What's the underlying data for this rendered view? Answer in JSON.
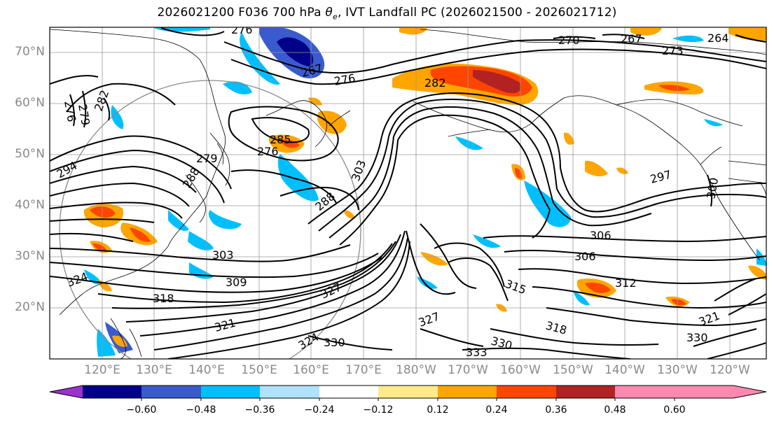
{
  "title": {
    "prefix": "2026021200 F036 700 hPa ",
    "theta": "θ",
    "sub": "e",
    "suffix": ", IVT Landfall PC (2026021500 - 2026021712)"
  },
  "map": {
    "projection": "PlateCarree",
    "extent": {
      "lon_min": 110,
      "lon_max": 247,
      "lat_min": 10,
      "lat_max": 75
    },
    "lat_labels": [
      "70°N",
      "60°N",
      "50°N",
      "40°N",
      "30°N",
      "20°N"
    ],
    "lon_labels": [
      "120°E",
      "130°E",
      "140°E",
      "150°E",
      "160°E",
      "170°E",
      "180°W",
      "170°W",
      "160°W",
      "150°W",
      "140°W",
      "130°W",
      "120°W"
    ],
    "contour_field": "700 hPa theta-e (K)",
    "contour_labels": [
      "276",
      "279",
      "282",
      "267",
      "276",
      "270",
      "267",
      "273",
      "264",
      "282",
      "276",
      "285",
      "279",
      "276",
      "288",
      "288",
      "294",
      "303",
      "309",
      "318",
      "321",
      "324",
      "327",
      "327",
      "303",
      "315",
      "306",
      "306",
      "312",
      "318",
      "321",
      "330",
      "333",
      "330",
      "330",
      "324",
      "300",
      "297"
    ],
    "shading_field": "IVT Landfall PC"
  },
  "colorbar": {
    "ticks": [
      "−0.60",
      "−0.48",
      "−0.36",
      "−0.24",
      "−0.12",
      "0.12",
      "0.24",
      "0.36",
      "0.48",
      "0.60"
    ],
    "colors": [
      "#9a32cd",
      "#00008b",
      "#3a5bcd",
      "#00bfff",
      "#b0e2ff",
      "#ffffff",
      "#ffeb8a",
      "#ffa500",
      "#ff4500",
      "#b22222",
      "#ff88b0"
    ],
    "extend": "both"
  }
}
